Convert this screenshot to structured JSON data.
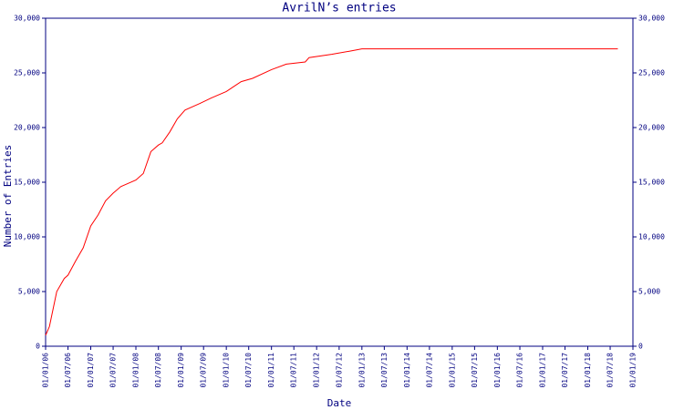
{
  "chart_data": {
    "type": "line",
    "title": "AvrilN’s entries",
    "x_label": "Date",
    "y_label": "Number of Entries",
    "x": [
      "2006-01-01",
      "2006-02-01",
      "2006-04-01",
      "2006-06-01",
      "2006-07-01",
      "2006-09-01",
      "2006-11-01",
      "2007-01-01",
      "2007-03-01",
      "2007-05-01",
      "2007-07-01",
      "2007-09-01",
      "2007-11-01",
      "2008-01-01",
      "2008-03-01",
      "2008-05-01",
      "2008-07-01",
      "2008-08-01",
      "2008-10-01",
      "2008-12-01",
      "2009-02-01",
      "2009-06-01",
      "2009-09-01",
      "2010-01-01",
      "2010-05-01",
      "2010-08-01",
      "2011-01-01",
      "2011-05-01",
      "2011-10-01",
      "2011-11-01",
      "2012-05-01",
      "2012-10-01",
      "2013-01-01",
      "2018-09-01"
    ],
    "values": [
      1000,
      1800,
      5000,
      6200,
      6500,
      7800,
      9000,
      11000,
      12000,
      13300,
      14000,
      14600,
      14900,
      15200,
      15800,
      17800,
      18400,
      18600,
      19600,
      20800,
      21600,
      22200,
      22700,
      23300,
      24200,
      24500,
      25300,
      25800,
      26000,
      26400,
      26700,
      27000,
      27200,
      27200
    ],
    "color": "#ff0000",
    "axis_color": "#000080",
    "xlim": [
      "2006-01-01",
      "2019-01-01"
    ],
    "xticks": [
      {
        "value": "2006-01-01",
        "label": "01/01/06"
      },
      {
        "value": "2006-07-01",
        "label": "01/07/06"
      },
      {
        "value": "2007-01-01",
        "label": "01/01/07"
      },
      {
        "value": "2007-07-01",
        "label": "01/07/07"
      },
      {
        "value": "2008-01-01",
        "label": "01/01/08"
      },
      {
        "value": "2008-07-01",
        "label": "01/07/08"
      },
      {
        "value": "2009-01-01",
        "label": "01/01/09"
      },
      {
        "value": "2009-07-01",
        "label": "01/07/09"
      },
      {
        "value": "2010-01-01",
        "label": "01/01/10"
      },
      {
        "value": "2010-07-01",
        "label": "01/07/10"
      },
      {
        "value": "2011-01-01",
        "label": "01/01/11"
      },
      {
        "value": "2011-07-01",
        "label": "01/07/11"
      },
      {
        "value": "2012-01-01",
        "label": "01/01/12"
      },
      {
        "value": "2012-07-01",
        "label": "01/07/12"
      },
      {
        "value": "2013-01-01",
        "label": "01/01/13"
      },
      {
        "value": "2013-07-01",
        "label": "01/07/13"
      },
      {
        "value": "2014-01-01",
        "label": "01/01/14"
      },
      {
        "value": "2014-07-01",
        "label": "01/07/14"
      },
      {
        "value": "2015-01-01",
        "label": "01/01/15"
      },
      {
        "value": "2015-07-01",
        "label": "01/07/15"
      },
      {
        "value": "2016-01-01",
        "label": "01/01/16"
      },
      {
        "value": "2016-07-01",
        "label": "01/07/16"
      },
      {
        "value": "2017-01-01",
        "label": "01/01/17"
      },
      {
        "value": "2017-07-01",
        "label": "01/07/17"
      },
      {
        "value": "2018-01-01",
        "label": "01/01/18"
      },
      {
        "value": "2018-07-01",
        "label": "01/07/18"
      },
      {
        "value": "2019-01-01",
        "label": "01/01/19"
      }
    ],
    "ylim": [
      0,
      30000
    ],
    "yticks": [
      0,
      {
        "value": 5000,
        "label": "5,000"
      },
      {
        "value": 10000,
        "label": "10,000"
      },
      {
        "value": 15000,
        "label": "15,000"
      },
      {
        "value": 20000,
        "label": "20,000"
      },
      {
        "value": 25000,
        "label": "25,000"
      },
      {
        "value": 30000,
        "label": "30,000"
      }
    ],
    "y2lim": [
      0,
      30000
    ],
    "y2ticks": [
      0,
      {
        "value": 5000,
        "label": "5,000"
      },
      {
        "value": 10000,
        "label": "10,000"
      },
      {
        "value": 15000,
        "label": "15,000"
      },
      {
        "value": 20000,
        "label": "20,000"
      },
      {
        "value": 25000,
        "label": "25,000"
      },
      {
        "value": 30000,
        "label": "30,000"
      }
    ]
  }
}
